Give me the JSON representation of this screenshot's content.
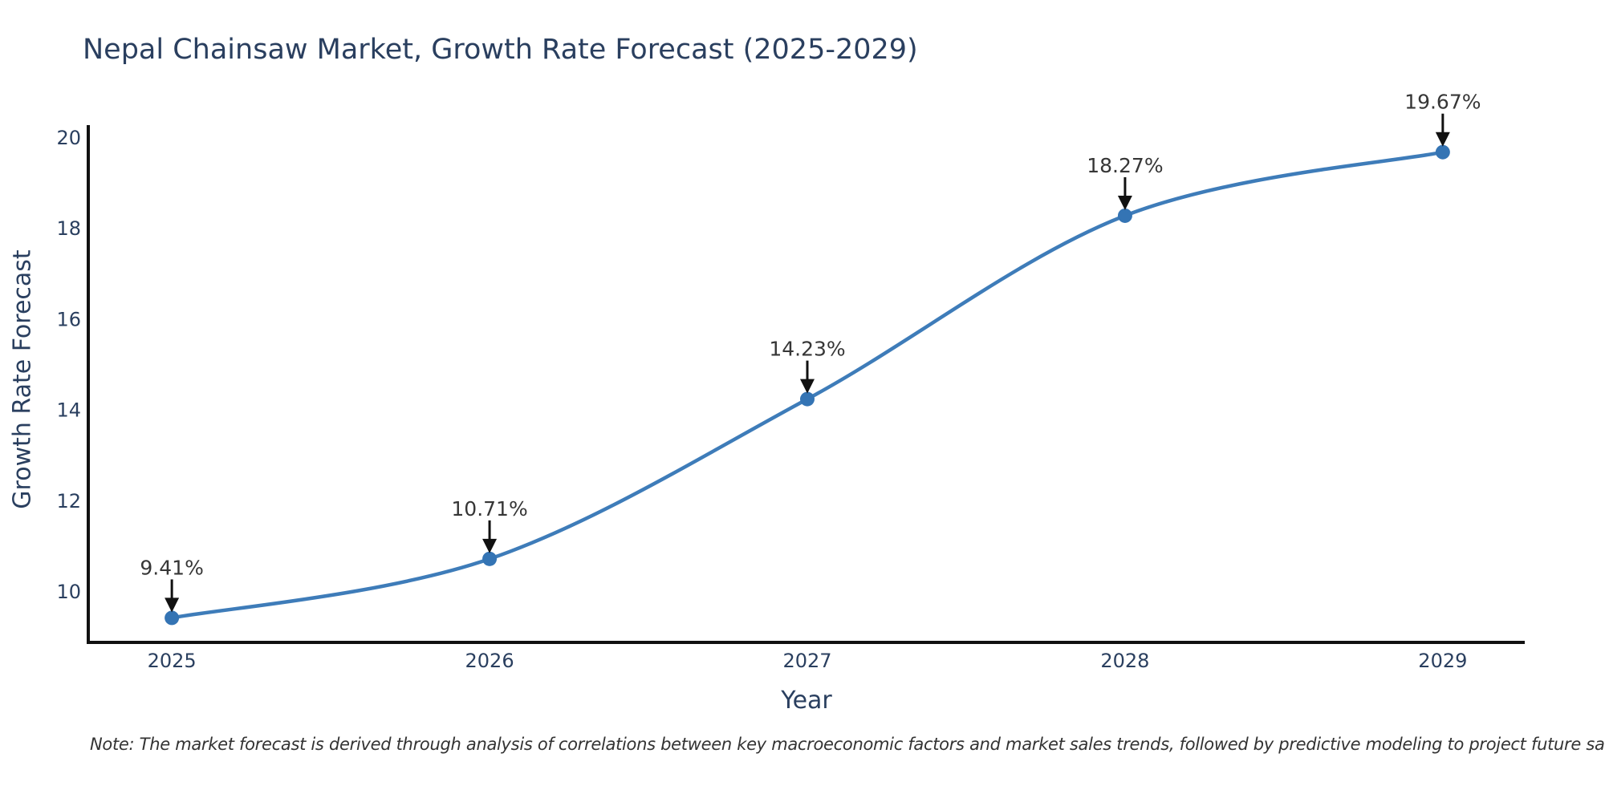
{
  "chart_data": {
    "type": "line",
    "title": "Nepal Chainsaw Market, Growth Rate Forecast (2025-2029)",
    "xlabel": "Year",
    "ylabel": "Growth Rate Forecast",
    "x": [
      2025,
      2026,
      2027,
      2028,
      2029
    ],
    "series": [
      {
        "name": "Growth Rate Forecast",
        "values": [
          9.41,
          10.71,
          14.23,
          18.27,
          19.67
        ]
      }
    ],
    "point_labels": [
      "9.41%",
      "10.71%",
      "14.23%",
      "18.27%",
      "19.67%"
    ],
    "xticks": [
      "2025",
      "2026",
      "2027",
      "2028",
      "2029"
    ],
    "yticks": [
      10,
      12,
      14,
      16,
      18,
      20
    ],
    "x_range": [
      2024.737,
      2029.258
    ],
    "y_range": [
      8.87,
      20.23
    ],
    "grid": false,
    "legend_position": "none",
    "line_shape": "spline",
    "line_color": "#3e7cb9",
    "marker_color": "#3474b4",
    "axis_color": "#111111",
    "text_color": "#2a3f5f",
    "annotation_text_color": "#363636",
    "annotation_arrow_color": "#111111"
  },
  "note": "Note: The market forecast is derived through analysis of correlations between key macroeconomic factors and market sales trends, followed by predictive modeling to project future sales."
}
